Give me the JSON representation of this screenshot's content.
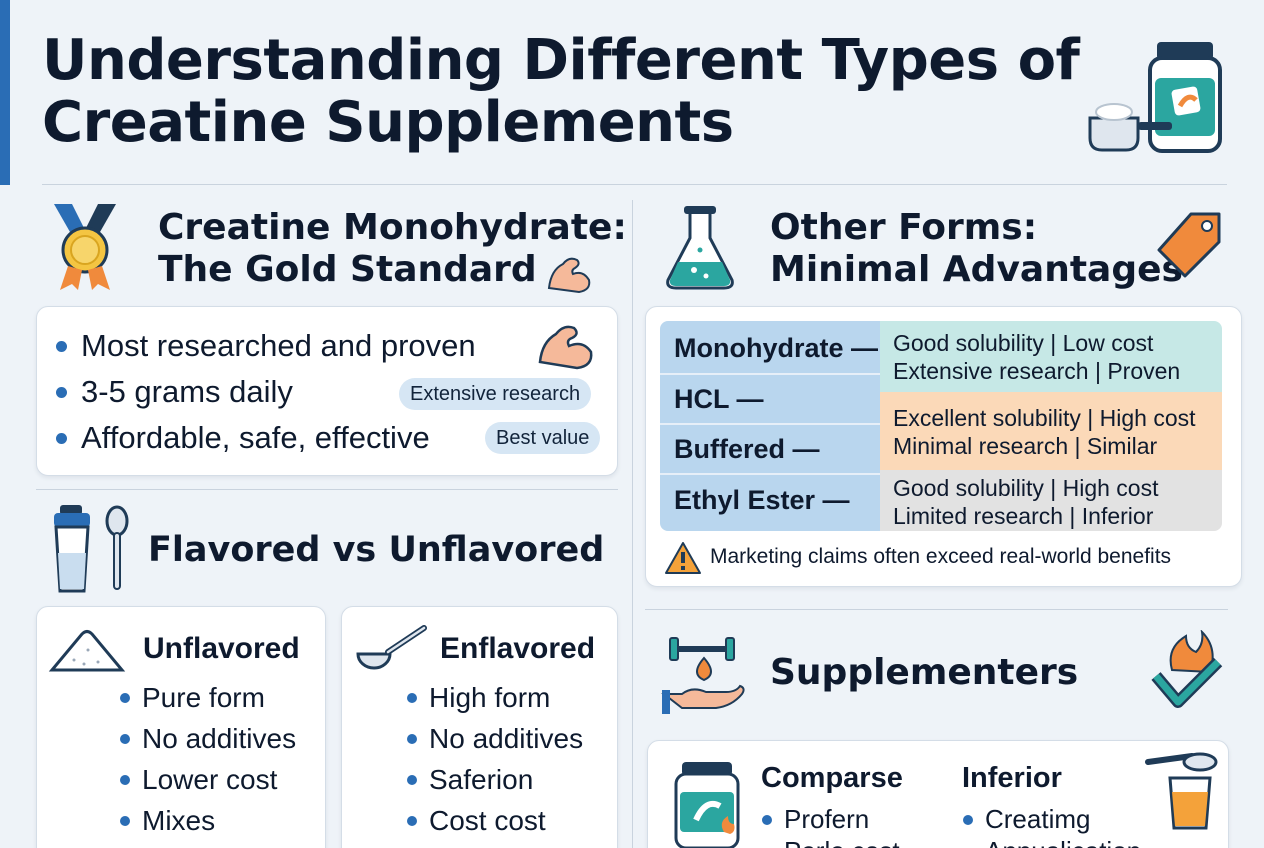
{
  "title": "Understanding Different Types of Creatine Supplements",
  "monohydrate": {
    "heading_line1": "Creatine Monohydrate:",
    "heading_line2": "The Gold Standard",
    "bullets": [
      "Most researched and proven",
      "3-5 grams daily",
      "Affordable, safe, effective"
    ],
    "tags": [
      "Extensive research",
      "Best value"
    ]
  },
  "flavored": {
    "heading": "Flavored vs Unflavored",
    "unflavored": {
      "title": "Unflavored",
      "items": [
        "Pure form",
        "No additives",
        "Lower cost",
        "Mixes"
      ]
    },
    "enflavored": {
      "title": "Enflavored",
      "items": [
        "High form",
        "No additives",
        "Saferion",
        "Cost cost"
      ]
    }
  },
  "other_forms": {
    "heading_line1": "Other Forms:",
    "heading_line2": "Minimal Advantages",
    "rows": [
      {
        "name": "Monohydrate —",
        "line1": "Good solubility | Low cost",
        "line2": "Extensive research | Proven",
        "color": "#c6e8e6"
      },
      {
        "name": "HCL —",
        "line1": "",
        "line2": "",
        "color": "#c6e8e6"
      },
      {
        "name": "Buffered —",
        "line1": "Excellent solubility | High cost",
        "line2": "Minimal research | Similar",
        "color": "#fbd9b8"
      },
      {
        "name": "Ethyl Ester —",
        "line1": "Good solubility | High cost",
        "line2": "Limited research | Inferior",
        "color": "#e2e2e2"
      }
    ],
    "warning": "Marketing claims often exceed real-world benefits"
  },
  "supplementers": {
    "heading": "Supplementers",
    "col1": {
      "title": "Comparse",
      "items": [
        "Profern",
        "Perle cost"
      ]
    },
    "col2": {
      "title": "Inferior",
      "items": [
        "Creatimg",
        "Annualication"
      ]
    }
  },
  "colors": {
    "accent": "#2a6db5",
    "teal": "#2ba6a0",
    "orange": "#f08a3c",
    "navy": "#1f3b57"
  }
}
